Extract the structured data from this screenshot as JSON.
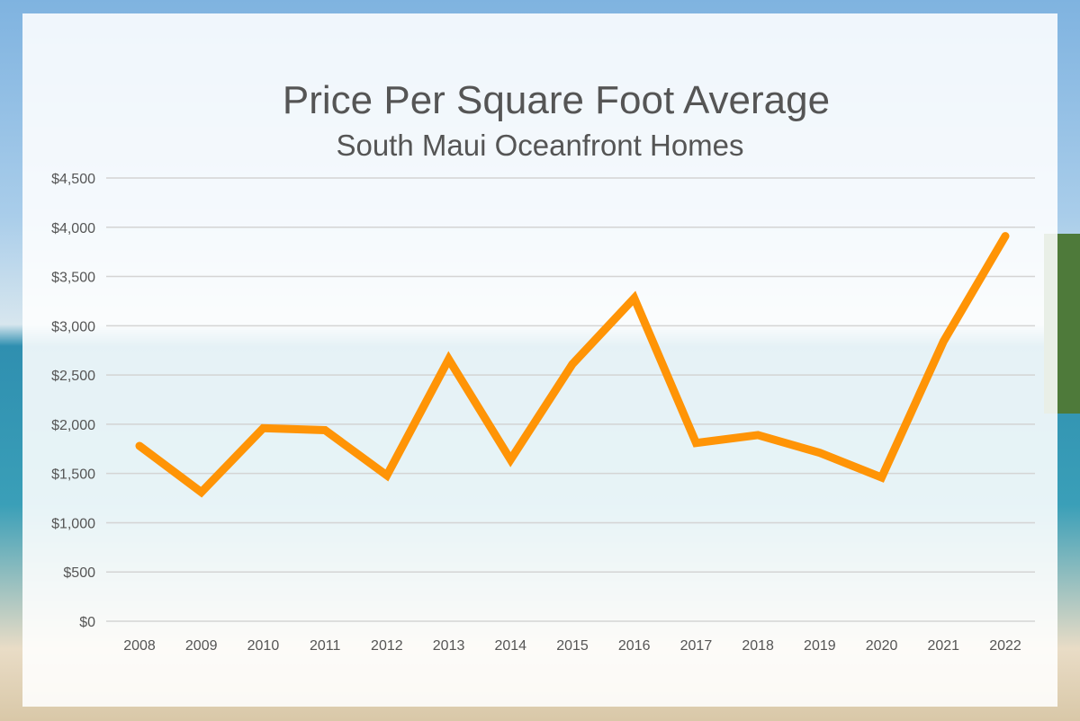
{
  "chart_data": {
    "type": "line",
    "title": "Price Per Square Foot Average",
    "subtitle": "South Maui Oceanfront Homes",
    "categories": [
      "2008",
      "2009",
      "2010",
      "2011",
      "2012",
      "2013",
      "2014",
      "2015",
      "2016",
      "2017",
      "2018",
      "2019",
      "2020",
      "2021",
      "2022"
    ],
    "values": [
      1780,
      1310,
      1960,
      1940,
      1480,
      2660,
      1640,
      2610,
      3280,
      1810,
      1890,
      1710,
      1460,
      2840,
      3910
    ],
    "ylim": [
      0,
      4500
    ],
    "yticks": [
      0,
      500,
      1000,
      1500,
      2000,
      2500,
      3000,
      3500,
      4000,
      4500
    ],
    "ytick_labels": [
      "$0",
      "$500",
      "$1,000",
      "$1,500",
      "$2,000",
      "$2,500",
      "$3,000",
      "$3,500",
      "$4,000",
      "$4,500"
    ],
    "grid": true,
    "line_color": "#ff9406",
    "xlabel": "",
    "ylabel": ""
  }
}
